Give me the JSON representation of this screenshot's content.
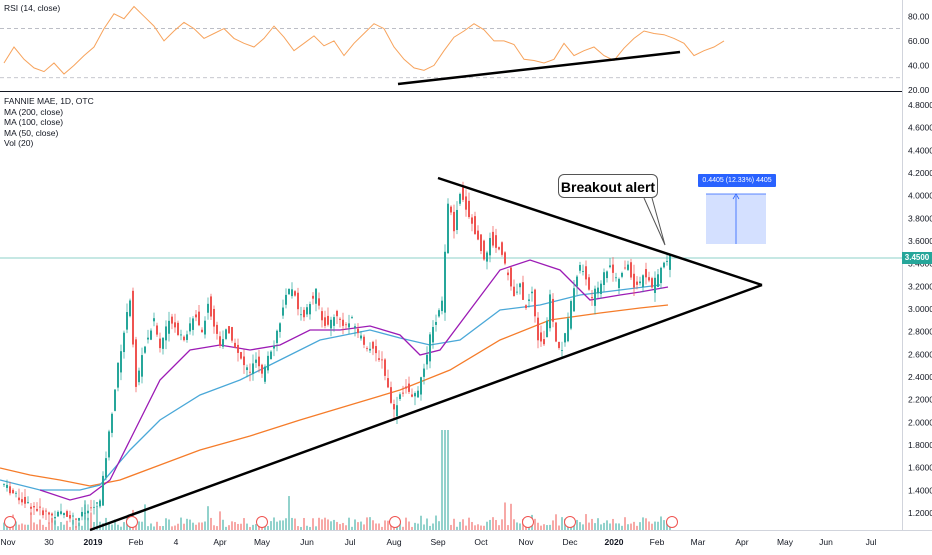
{
  "legend": {
    "rsi": "RSI (14, close)",
    "symbol": "FANNIE MAE, 1D, OTC",
    "ma200": "MA (200, close)",
    "ma100": "MA (100, close)",
    "ma50": "MA (50, close)",
    "vol": "Vol (20)"
  },
  "callout": "Breakout alert",
  "measure_label": "0.4405 (12.33%) 4405",
  "last_price": "3.4500",
  "colors": {
    "up": "#26a69a",
    "down": "#ef5350",
    "rsi": "#f7a35c",
    "ma200": "#f57c2a",
    "ma100": "#4aa8d8",
    "ma50": "#9c1bb5",
    "trendline": "#000000",
    "measure": "#2962ff"
  },
  "chart_data": [
    {
      "type": "line",
      "panel": "rsi",
      "title": "RSI (14, close)",
      "ylim": [
        20,
        90
      ],
      "y_ticks": [
        "80.00",
        "60.00",
        "40.00",
        "20.00"
      ],
      "levels": [
        70,
        30
      ],
      "series": [
        {
          "name": "RSI (14, close)",
          "x": [
            0,
            10,
            20,
            30,
            40,
            50,
            60,
            70,
            80,
            90,
            100,
            110,
            120,
            130,
            140,
            150,
            160,
            170,
            180,
            190,
            200,
            210,
            220,
            230,
            240,
            250,
            260,
            270,
            280,
            290,
            300,
            310,
            320,
            330,
            340,
            350,
            360,
            370,
            380,
            390,
            400,
            410,
            420,
            430,
            440,
            450,
            460,
            470,
            480,
            490,
            500,
            510,
            520,
            530,
            540,
            550,
            560,
            570,
            580,
            590,
            600,
            610,
            620,
            630,
            640,
            650,
            660,
            670,
            680,
            690,
            700,
            710,
            720
          ],
          "values": [
            42,
            55,
            45,
            38,
            35,
            42,
            33,
            40,
            48,
            55,
            70,
            82,
            78,
            88,
            80,
            72,
            60,
            68,
            75,
            70,
            62,
            66,
            70,
            62,
            58,
            55,
            62,
            72,
            63,
            52,
            58,
            64,
            56,
            60,
            48,
            58,
            66,
            74,
            70,
            55,
            45,
            38,
            36,
            40,
            52,
            63,
            68,
            74,
            69,
            60,
            60,
            57,
            45,
            44,
            42,
            45,
            58,
            48,
            52,
            55,
            48,
            44,
            54,
            62,
            68,
            66,
            65,
            62,
            58,
            48,
            52,
            55,
            60
          ]
        }
      ]
    },
    {
      "type": "candlestick",
      "panel": "price",
      "title": "FANNIE MAE, 1D, OTC",
      "ylim": [
        1.0,
        5.0
      ],
      "y_ticks": [
        "4.8000",
        "4.6000",
        "4.4000",
        "4.2000",
        "4.0000",
        "3.8000",
        "3.6000",
        "3.4000",
        "3.2000",
        "3.0000",
        "2.8000",
        "2.6000",
        "2.4000",
        "2.2000",
        "2.0000",
        "1.8000",
        "1.6000",
        "1.4000",
        "1.2000"
      ],
      "x_ticks": [
        "Nov",
        "30",
        "2019",
        "Feb",
        "4",
        "Apr",
        "May",
        "Jun",
        "Jul",
        "Aug",
        "Sep",
        "Oct",
        "Nov",
        "Dec",
        "2020",
        "Feb",
        "Mar",
        "Apr",
        "May",
        "Jun",
        "Jul"
      ],
      "last": 3.45,
      "series": [
        {
          "name": "FANNIE MAE",
          "x": [
            0,
            12,
            24,
            36,
            48,
            60,
            72,
            84,
            96,
            102,
            108,
            114,
            120,
            126,
            132,
            138,
            144,
            150,
            156,
            162,
            168,
            174,
            180,
            186,
            192,
            198,
            204,
            210,
            216,
            222,
            228,
            234,
            240,
            246,
            252,
            258,
            264,
            270,
            276,
            282,
            288,
            294,
            300,
            306,
            312,
            318,
            324,
            330,
            336,
            342,
            348,
            354,
            360,
            366,
            372,
            378,
            384,
            390,
            396,
            402,
            408,
            414,
            420,
            426,
            432,
            438,
            444,
            450,
            456,
            462,
            468,
            474,
            480,
            486,
            492,
            498,
            504,
            510,
            516,
            522,
            528,
            534,
            540,
            546,
            552,
            558,
            564,
            570,
            576,
            582,
            588,
            594,
            600,
            606,
            612,
            618,
            624,
            630,
            636,
            642,
            648,
            654,
            660,
            666
          ],
          "close": [
            1.45,
            1.35,
            1.28,
            1.22,
            1.18,
            1.2,
            1.15,
            1.22,
            1.3,
            1.7,
            2.1,
            2.5,
            2.8,
            3.1,
            2.3,
            2.6,
            2.75,
            2.9,
            2.65,
            2.85,
            2.9,
            2.8,
            2.75,
            2.85,
            2.95,
            2.8,
            3.05,
            2.85,
            2.7,
            2.8,
            2.75,
            2.6,
            2.5,
            2.45,
            2.55,
            2.4,
            2.6,
            2.7,
            2.9,
            3.1,
            3.2,
            3.0,
            2.95,
            3.05,
            3.15,
            2.9,
            2.85,
            2.95,
            2.9,
            2.85,
            2.9,
            2.8,
            2.7,
            2.65,
            2.6,
            2.55,
            2.3,
            2.1,
            2.25,
            2.3,
            2.2,
            2.3,
            2.45,
            2.75,
            2.9,
            3.05,
            3.95,
            3.7,
            4.0,
            3.9,
            3.75,
            3.6,
            3.45,
            3.6,
            3.55,
            3.5,
            3.3,
            3.1,
            3.2,
            3.0,
            3.15,
            2.75,
            2.7,
            3.1,
            2.7,
            2.65,
            2.9,
            3.2,
            3.4,
            3.25,
            3.1,
            3.2,
            3.3,
            3.4,
            3.25,
            3.3,
            3.4,
            3.2,
            3.25,
            3.3,
            3.2,
            3.3,
            3.4,
            3.45
          ]
        }
      ]
    }
  ]
}
